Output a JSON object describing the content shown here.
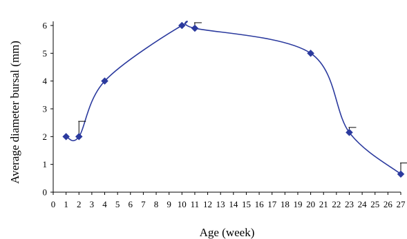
{
  "chart_data": {
    "type": "line",
    "xlabel": "Age (week)",
    "ylabel": "Average diameter bursal (mm)",
    "xlim": [
      0,
      27
    ],
    "ylim": [
      0,
      6
    ],
    "x_ticks": [
      "0",
      "1",
      "2",
      "3",
      "4",
      "5",
      "6",
      "7",
      "8",
      "9",
      "10",
      "11",
      "12",
      "13",
      "14",
      "15",
      "16",
      "17",
      "18",
      "19",
      "20",
      "21",
      "22",
      "23",
      "24",
      "25",
      "26",
      "27"
    ],
    "y_ticks": [
      "0",
      "1",
      "2",
      "3",
      "4",
      "5",
      "6"
    ],
    "grid": false,
    "legend": "none",
    "series": [
      {
        "color": "#2b3a9e",
        "marker": "diamond",
        "smooth": true,
        "points": [
          {
            "x": 1,
            "y": 2.0
          },
          {
            "x": 2,
            "y": 2.0,
            "err": 0.55
          },
          {
            "x": 4,
            "y": 4.0
          },
          {
            "x": 10,
            "y": 6.0
          },
          {
            "x": 11,
            "y": 5.9,
            "err": 0.2
          },
          {
            "x": 20,
            "y": 5.0
          },
          {
            "x": 23,
            "y": 2.15,
            "err": 0.18
          },
          {
            "x": 27,
            "y": 0.65,
            "err": 0.4
          }
        ]
      }
    ]
  }
}
